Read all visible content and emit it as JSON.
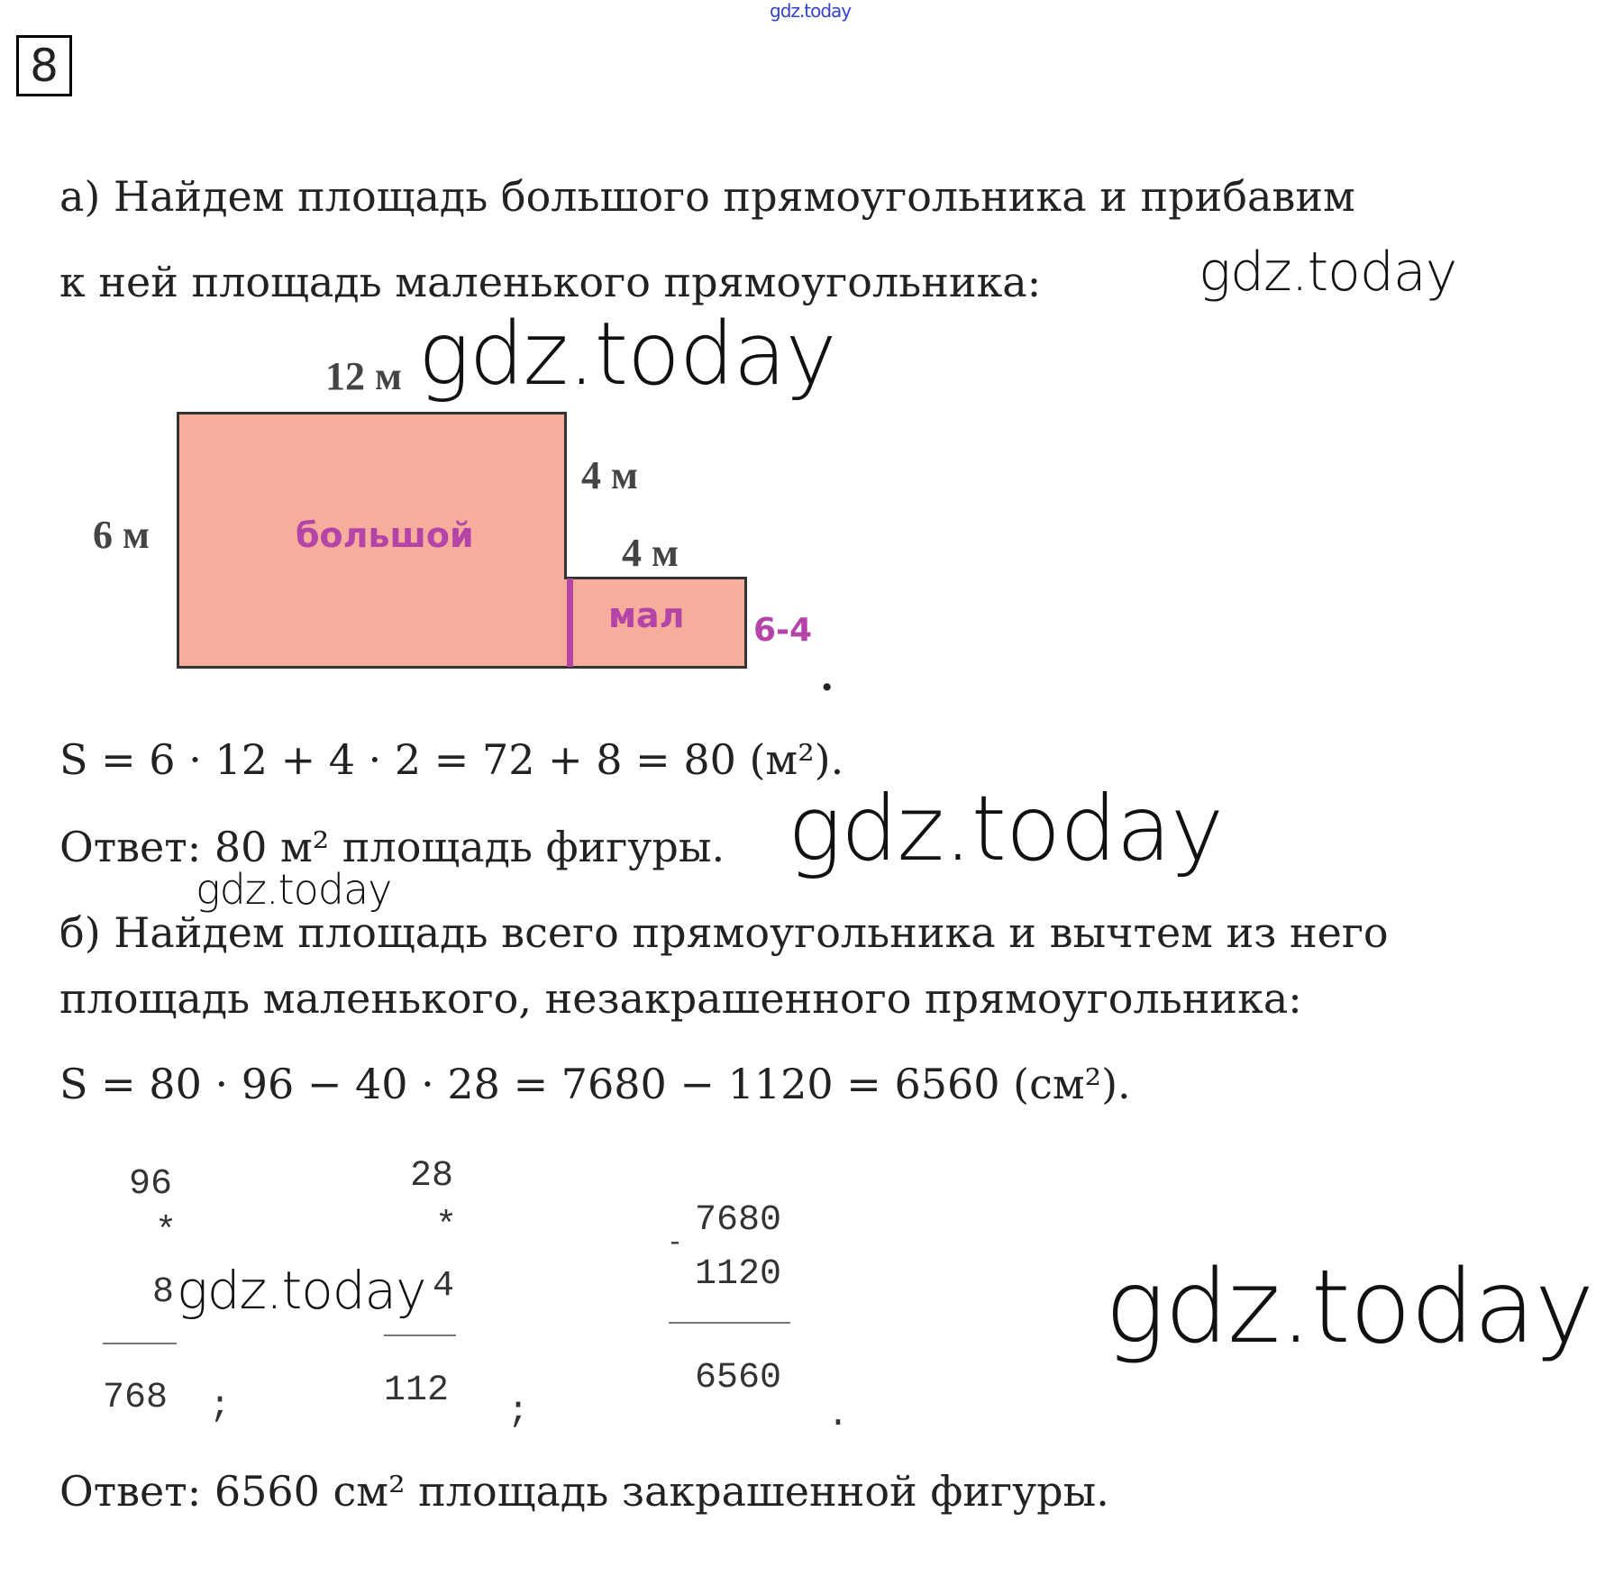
{
  "number": "8",
  "watermark": "gdz.today",
  "part_a": {
    "line1": "а) Найдем площадь большого прямоугольника и прибавим",
    "line2": "к ней площадь маленького прямоугольника:",
    "figure": {
      "top": "12 м",
      "left": "6 м",
      "step": "4 м",
      "small_top": "4 м",
      "big_label": "большой",
      "small_label": "мал",
      "small_height": "6-4",
      "fill": "#f7ad9c",
      "accent": "#b444a8"
    },
    "dot": ".",
    "formula": "S = 6 · 12 + 4 · 2 = 72 + 8 = 80 (м²).",
    "answer": "Ответ: 80 м² площадь фигуры."
  },
  "part_b": {
    "line1": "б) Найдем площадь всего прямоугольника и вычтем из него",
    "line2": "площадь маленького, незакрашенного прямоугольника:",
    "formula": "S = 80 · 96 − 40 · 28 = 7680 − 1120 = 6560 (см²).",
    "calc1": {
      "a": "96",
      "op": "*",
      "b": "8",
      "result": "768",
      "end": ";"
    },
    "calc2": {
      "a": "28",
      "op": "*",
      "b": "4",
      "result": "112",
      "end": ";"
    },
    "calc3": {
      "op": "-",
      "a": "7680",
      "b": "1120",
      "result": "6560",
      "end": "."
    },
    "answer": "Ответ: 6560 см² площадь закрашенной фигуры."
  }
}
